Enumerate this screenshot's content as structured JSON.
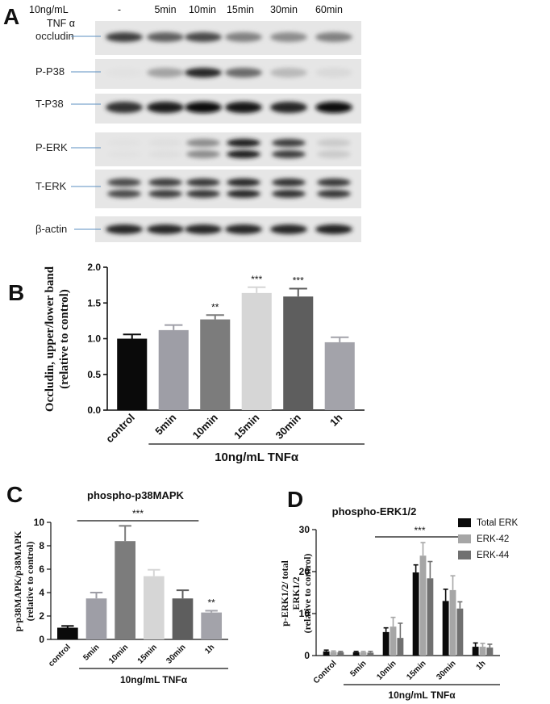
{
  "panel_a": {
    "letter": "A",
    "header": {
      "treatment": "10ng/mL",
      "treatment_sub": "TNF α",
      "lanes": [
        "-",
        "5min",
        "10min",
        "15min",
        "30min",
        "60min"
      ]
    },
    "blots": [
      {
        "label": "occludin",
        "intensity": [
          0.75,
          0.6,
          0.7,
          0.45,
          0.4,
          0.45
        ],
        "doublet": false
      },
      {
        "label": "P-P38",
        "intensity": [
          0.02,
          0.3,
          0.85,
          0.55,
          0.2,
          0.06
        ],
        "doublet": false
      },
      {
        "label": "T-P38",
        "intensity": [
          0.8,
          0.9,
          0.95,
          0.92,
          0.85,
          0.98
        ],
        "doublet": false
      },
      {
        "label": "P-ERK",
        "intensity": [
          0.02,
          0.03,
          0.4,
          0.9,
          0.75,
          0.12
        ],
        "doublet": true
      },
      {
        "label": "T-ERK",
        "intensity": [
          0.7,
          0.75,
          0.78,
          0.85,
          0.8,
          0.78
        ],
        "doublet": true
      },
      {
        "label": "β-actin",
        "intensity": [
          0.85,
          0.85,
          0.85,
          0.85,
          0.85,
          0.88
        ],
        "doublet": false
      }
    ]
  },
  "chart_data": [
    {
      "panel": "B",
      "type": "bar",
      "title": "",
      "ylabel_line1": "Occludin, upper/lower band",
      "ylabel_line2": "(relative to control)",
      "xlabel": "10ng/mL TNFα",
      "categories": [
        "control",
        "5min",
        "10min",
        "15min",
        "30min",
        "1h"
      ],
      "values": [
        1.0,
        1.12,
        1.27,
        1.64,
        1.59,
        0.95
      ],
      "errors": [
        0.06,
        0.07,
        0.06,
        0.08,
        0.11,
        0.07
      ],
      "colors": [
        "#0a0a0a",
        "#9e9ea6",
        "#7c7c7c",
        "#d6d6d6",
        "#5e5e5e",
        "#a3a3aa"
      ],
      "significance": [
        "",
        "",
        "**",
        "***",
        "***",
        ""
      ],
      "ylim": [
        0,
        2.0
      ],
      "yticks": [
        "0.0",
        "0.5",
        "1.0",
        "1.5",
        "2.0"
      ]
    },
    {
      "panel": "C",
      "type": "bar",
      "title": "phospho-p38MAPK",
      "ylabel_line1": "p-p38MAPK/p38MAPK",
      "ylabel_line2": "(relative to control)",
      "xlabel": "10ng/mL TNFα",
      "categories": [
        "control",
        "5min",
        "10min",
        "15min",
        "30min",
        "1h"
      ],
      "values": [
        1.0,
        3.5,
        8.4,
        5.4,
        3.5,
        2.3
      ],
      "errors": [
        0.15,
        0.5,
        1.3,
        0.55,
        0.7,
        0.15
      ],
      "colors": [
        "#0a0a0a",
        "#9e9ea6",
        "#7c7c7c",
        "#d6d6d6",
        "#5e5e5e",
        "#a3a3aa"
      ],
      "significance": [
        "",
        "",
        "",
        "",
        "",
        "**"
      ],
      "bracket_label": "***",
      "ylim": [
        0,
        10
      ],
      "yticks": [
        "0",
        "2",
        "4",
        "6",
        "8",
        "10"
      ]
    },
    {
      "panel": "D",
      "type": "bar",
      "title": "phospho-ERK1/2",
      "ylabel_line1": "p-ERK1/2/ total",
      "ylabel_line2": "ERK1/2",
      "ylabel_line3": "(relative to control)",
      "xlabel": "10ng/mL TNFα",
      "categories": [
        "Control",
        "5min",
        "10min",
        "15min",
        "30min",
        "1h"
      ],
      "series": [
        {
          "name": "Total ERK",
          "color": "#0a0a0a",
          "values": [
            1.0,
            0.8,
            5.6,
            19.8,
            13.0,
            2.1
          ],
          "errors": [
            0.3,
            0.2,
            1.0,
            1.8,
            2.8,
            0.9
          ]
        },
        {
          "name": "ERK-42",
          "color": "#a6a6a6",
          "values": [
            0.9,
            0.8,
            6.9,
            23.8,
            15.6,
            2.1
          ],
          "errors": [
            0.2,
            0.2,
            2.2,
            3.1,
            3.4,
            0.8
          ]
        },
        {
          "name": "ERK-44",
          "color": "#707070",
          "values": [
            0.8,
            0.7,
            4.2,
            18.4,
            11.2,
            1.9
          ],
          "errors": [
            0.2,
            0.3,
            3.5,
            4.0,
            1.6,
            0.8
          ]
        }
      ],
      "bracket_label": "***",
      "ylim": [
        0,
        30
      ],
      "yticks": [
        "0",
        "10",
        "20",
        "30"
      ],
      "legend_position": "top-right"
    }
  ]
}
